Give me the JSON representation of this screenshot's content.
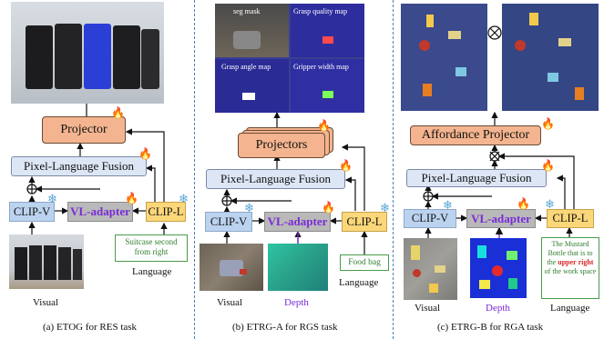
{
  "panel_a": {
    "projector": "Projector",
    "fusion": "Pixel-Language Fusion",
    "clip_v": "CLIP-V",
    "vl_adapter": "VL-adapter",
    "clip_l": "CLIP-L",
    "language_text": "Suitcase second from right",
    "language_label": "Language",
    "visual_label": "Visual",
    "caption": "(a) ETOG for RES task"
  },
  "panel_b": {
    "map_labels": [
      "seg mask",
      "Grasp quality map",
      "Grasp angle map",
      "Gripper width map"
    ],
    "projector": "Projectors",
    "fusion": "Pixel-Language Fusion",
    "clip_v": "CLIP-V",
    "vl_adapter": "VL-adapter",
    "clip_l": "CLIP-L",
    "language_text": "Food bag",
    "language_label": "Language",
    "visual_label": "Visual",
    "depth_label": "Depth",
    "caption": "(b) ETRG-A for RGS task"
  },
  "panel_c": {
    "projector": "Affordance Projector",
    "fusion": "Pixel-Language Fusion",
    "clip_v": "CLIP-V",
    "vl_adapter": "VL-adapter",
    "clip_l": "CLIP-L",
    "language_text_1": "The Mustard Bottle that is to the",
    "language_text_2": "upper right",
    "language_text_3": "of the work space",
    "language_label": "Language",
    "visual_label": "Visual",
    "depth_label": "Depth",
    "caption": "(c) ETRG-B for RGA task"
  },
  "icons": {
    "trainable": "fire-icon",
    "frozen": "snowflake-icon"
  },
  "colors": {
    "projector": "#f3b48f",
    "fusion": "#dde6f5",
    "clip_v": "#bcd3ef",
    "clip_l": "#fbd77a",
    "vl_adapter": "#b9b9b9",
    "vl_text": "#7a2bd6",
    "divider": "#4a7fc1"
  }
}
